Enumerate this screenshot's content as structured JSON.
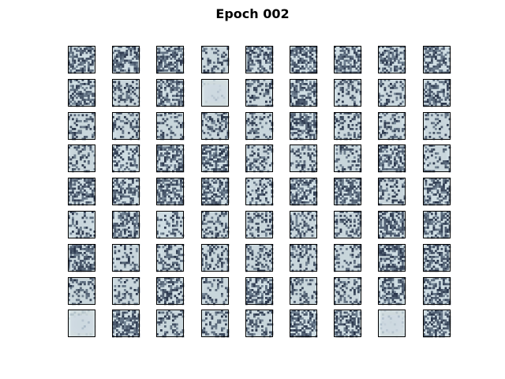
{
  "figure": {
    "title": "Epoch 002"
  },
  "grid": {
    "rows": 9,
    "cols": 9,
    "colormap": "bone",
    "cells": [
      [
        "noise",
        "noise",
        "noise",
        "faint-0",
        "noise",
        "noise",
        "noise",
        "noise",
        "noise"
      ],
      [
        "noise",
        "faint-0",
        "noise",
        "clear-0",
        "faint-0",
        "noise",
        "faint-3",
        "faint-4",
        "noise"
      ],
      [
        "faint-0",
        "faint-3",
        "faint-0",
        "faint-0",
        "faint-0",
        "noise",
        "faint-2",
        "faint-3",
        "faint-0"
      ],
      [
        "faint-0",
        "blurred-3",
        "noise",
        "noise",
        "faint-3",
        "faint-0",
        "faint-0",
        "noise",
        "faint-3"
      ],
      [
        "noise",
        "noise",
        "noise",
        "noise",
        "faint-4",
        "noise",
        "noise",
        "faint-0",
        "noise"
      ],
      [
        "faint-4",
        "noise",
        "dark-blob",
        "faint-0",
        "faint-0",
        "faint-0",
        "faint-0",
        "noise",
        "noise"
      ],
      [
        "noise",
        "faint-2",
        "faint-4",
        "faint-0",
        "faint-0",
        "faint-0",
        "faint-0",
        "noise",
        "noise"
      ],
      [
        "faint-0",
        "faint-0",
        "noise",
        "faint-0",
        "noise",
        "faint-0",
        "faint-0",
        "noise",
        "noise"
      ],
      [
        "clear-0",
        "noise",
        "faint-0",
        "faint-0",
        "faint-0",
        "noise",
        "noise",
        "clear-0",
        "noise"
      ]
    ]
  },
  "colors": {
    "background": "#ffffff",
    "frame": "#000000",
    "ink": "#1c2432",
    "paper_light": "#dde9ec",
    "paper_mid": "#9fb3c0",
    "noise_dark": "#28344a",
    "noise_light": "#cfdde3",
    "blob_bg": "#000000",
    "blob_fg": "#b6c8e0"
  }
}
